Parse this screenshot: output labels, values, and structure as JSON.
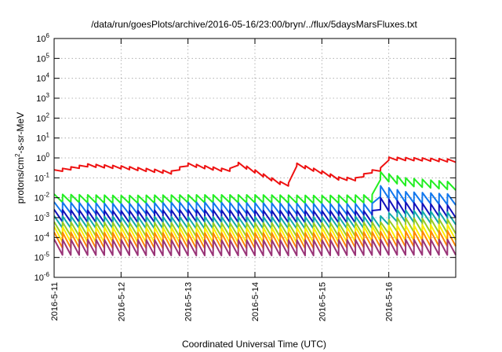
{
  "chart_data": {
    "type": "line",
    "title": "/data/run/goesPlots/archive/2016-05-16/23:00/bryn/../flux/5daysMarsFluxes.txt",
    "xlabel": "Coordinated Universal Time (UTC)",
    "ylabel": {
      "base": "protons/cm",
      "sup": "2",
      "rest": "-s-sr-MeV"
    },
    "y_scale": "log",
    "ylim": [
      1e-06,
      1000000.0
    ],
    "yticks": [
      {
        "value": 1e-06,
        "base": "10",
        "exp": "-6"
      },
      {
        "value": 1e-05,
        "base": "10",
        "exp": "-5"
      },
      {
        "value": 0.0001,
        "base": "10",
        "exp": "-4"
      },
      {
        "value": 0.001,
        "base": "10",
        "exp": "-3"
      },
      {
        "value": 0.01,
        "base": "10",
        "exp": "-2"
      },
      {
        "value": 0.1,
        "base": "10",
        "exp": "-1"
      },
      {
        "value": 1,
        "base": "10",
        "exp": "0"
      },
      {
        "value": 10,
        "base": "10",
        "exp": "1"
      },
      {
        "value": 100,
        "base": "10",
        "exp": "2"
      },
      {
        "value": 1000,
        "base": "10",
        "exp": "3"
      },
      {
        "value": 10000,
        "base": "10",
        "exp": "4"
      },
      {
        "value": 100000,
        "base": "10",
        "exp": "5"
      },
      {
        "value": 1000000,
        "base": "10",
        "exp": "6"
      }
    ],
    "xlim": [
      "2016-05-11T00:00",
      "2016-05-17T00:00"
    ],
    "xticks": [
      {
        "value": "2016-05-11T00:00",
        "label": "2016-5-11"
      },
      {
        "value": "2016-05-12T00:00",
        "label": "2016-5-12"
      },
      {
        "value": "2016-05-13T00:00",
        "label": "2016-5-13"
      },
      {
        "value": "2016-05-14T00:00",
        "label": "2016-5-14"
      },
      {
        "value": "2016-05-15T00:00",
        "label": "2016-5-15"
      },
      {
        "value": "2016-05-16T00:00",
        "label": "2016-5-16"
      }
    ],
    "grid": true,
    "legend": "none",
    "series_period_hours": 3,
    "series": [
      {
        "color": "#ee1111",
        "sawtooth_depth": 1.4,
        "anchors": [
          [
            "2016-05-11T00:00",
            0.25
          ],
          [
            "2016-05-11T12:00",
            0.5
          ],
          [
            "2016-05-12T00:00",
            0.4
          ],
          [
            "2016-05-12T18:00",
            0.22
          ],
          [
            "2016-05-13T00:00",
            0.55
          ],
          [
            "2016-05-13T12:00",
            0.3
          ],
          [
            "2016-05-13T16:00",
            0.3
          ],
          [
            "2016-05-13T18:00",
            0.6
          ],
          [
            "2016-05-14T00:00",
            0.25
          ],
          [
            "2016-05-14T06:00",
            0.1
          ],
          [
            "2016-05-14T11:00",
            0.05
          ],
          [
            "2016-05-14T13:00",
            0.06
          ],
          [
            "2016-05-14T14:00",
            0.6
          ],
          [
            "2016-05-14T23:00",
            0.25
          ],
          [
            "2016-05-15T06:00",
            0.11
          ],
          [
            "2016-05-15T12:00",
            0.1
          ],
          [
            "2016-05-15T18:00",
            0.25
          ],
          [
            "2016-05-15T21:00",
            0.3
          ],
          [
            "2016-05-15T22:00",
            1.1
          ],
          [
            "2016-05-16T12:00",
            1.0
          ],
          [
            "2016-05-17T00:00",
            0.85
          ]
        ]
      },
      {
        "color": "#22ee22",
        "sawtooth_depth": 2.5,
        "anchors": [
          [
            "2016-05-11T00:00",
            0.015
          ],
          [
            "2016-05-12T00:00",
            0.013
          ],
          [
            "2016-05-13T00:00",
            0.014
          ],
          [
            "2016-05-14T00:00",
            0.014
          ],
          [
            "2016-05-15T00:00",
            0.013
          ],
          [
            "2016-05-15T18:00",
            0.014
          ],
          [
            "2016-05-15T21:00",
            0.2
          ],
          [
            "2016-05-16T06:00",
            0.1
          ],
          [
            "2016-05-17T00:00",
            0.06
          ]
        ]
      },
      {
        "color": "#1177ee",
        "sawtooth_depth": 3.5,
        "anchors": [
          [
            "2016-05-11T00:00",
            0.006
          ],
          [
            "2016-05-12T00:00",
            0.005
          ],
          [
            "2016-05-13T00:00",
            0.006
          ],
          [
            "2016-05-14T00:00",
            0.0055
          ],
          [
            "2016-05-15T00:00",
            0.005
          ],
          [
            "2016-05-15T18:00",
            0.005
          ],
          [
            "2016-05-15T21:00",
            0.04
          ],
          [
            "2016-05-16T06:00",
            0.02
          ],
          [
            "2016-05-17T00:00",
            0.015
          ]
        ]
      },
      {
        "color": "#1111bb",
        "sawtooth_depth": 4,
        "anchors": [
          [
            "2016-05-11T00:00",
            0.0025
          ],
          [
            "2016-05-12T00:00",
            0.0022
          ],
          [
            "2016-05-13T00:00",
            0.0025
          ],
          [
            "2016-05-14T00:00",
            0.0023
          ],
          [
            "2016-05-15T00:00",
            0.0022
          ],
          [
            "2016-05-15T18:00",
            0.0022
          ],
          [
            "2016-05-15T21:00",
            0.01
          ],
          [
            "2016-05-16T06:00",
            0.006
          ],
          [
            "2016-05-17T00:00",
            0.004
          ]
        ]
      },
      {
        "color": "#11aaaa",
        "sawtooth_depth": 4,
        "anchors": [
          [
            "2016-05-11T00:00",
            0.0012
          ],
          [
            "2016-05-13T00:00",
            0.0011
          ],
          [
            "2016-05-15T00:00",
            0.0011
          ],
          [
            "2016-05-15T21:00",
            0.0012
          ],
          [
            "2016-05-16T03:00",
            0.0025
          ],
          [
            "2016-05-17T00:00",
            0.0018
          ]
        ]
      },
      {
        "color": "#99cc22",
        "sawtooth_depth": 5,
        "anchors": [
          [
            "2016-05-11T00:00",
            0.0006
          ],
          [
            "2016-05-13T00:00",
            0.00055
          ],
          [
            "2016-05-15T00:00",
            0.00055
          ],
          [
            "2016-05-15T21:00",
            0.0006
          ],
          [
            "2016-05-16T03:00",
            0.001
          ],
          [
            "2016-05-17T00:00",
            0.0008
          ]
        ]
      },
      {
        "color": "#ffee00",
        "sawtooth_depth": 6,
        "anchors": [
          [
            "2016-05-11T00:00",
            0.00035
          ],
          [
            "2016-05-13T00:00",
            0.00032
          ],
          [
            "2016-05-15T00:00",
            0.00032
          ],
          [
            "2016-05-16T00:00",
            0.0004
          ],
          [
            "2016-05-17T00:00",
            0.00045
          ]
        ]
      },
      {
        "color": "#ff8800",
        "sawtooth_depth": 6,
        "anchors": [
          [
            "2016-05-11T00:00",
            0.00018
          ],
          [
            "2016-05-13T00:00",
            0.00017
          ],
          [
            "2016-05-15T00:00",
            0.00017
          ],
          [
            "2016-05-16T00:00",
            0.0002
          ],
          [
            "2016-05-17T00:00",
            0.00022
          ]
        ]
      },
      {
        "color": "#993377",
        "sawtooth_depth": 6,
        "anchors": [
          [
            "2016-05-11T00:00",
            8e-05
          ],
          [
            "2016-05-13T00:00",
            7.5e-05
          ],
          [
            "2016-05-15T00:00",
            7.5e-05
          ],
          [
            "2016-05-16T00:00",
            8e-05
          ],
          [
            "2016-05-17T00:00",
            8e-05
          ]
        ]
      }
    ]
  }
}
